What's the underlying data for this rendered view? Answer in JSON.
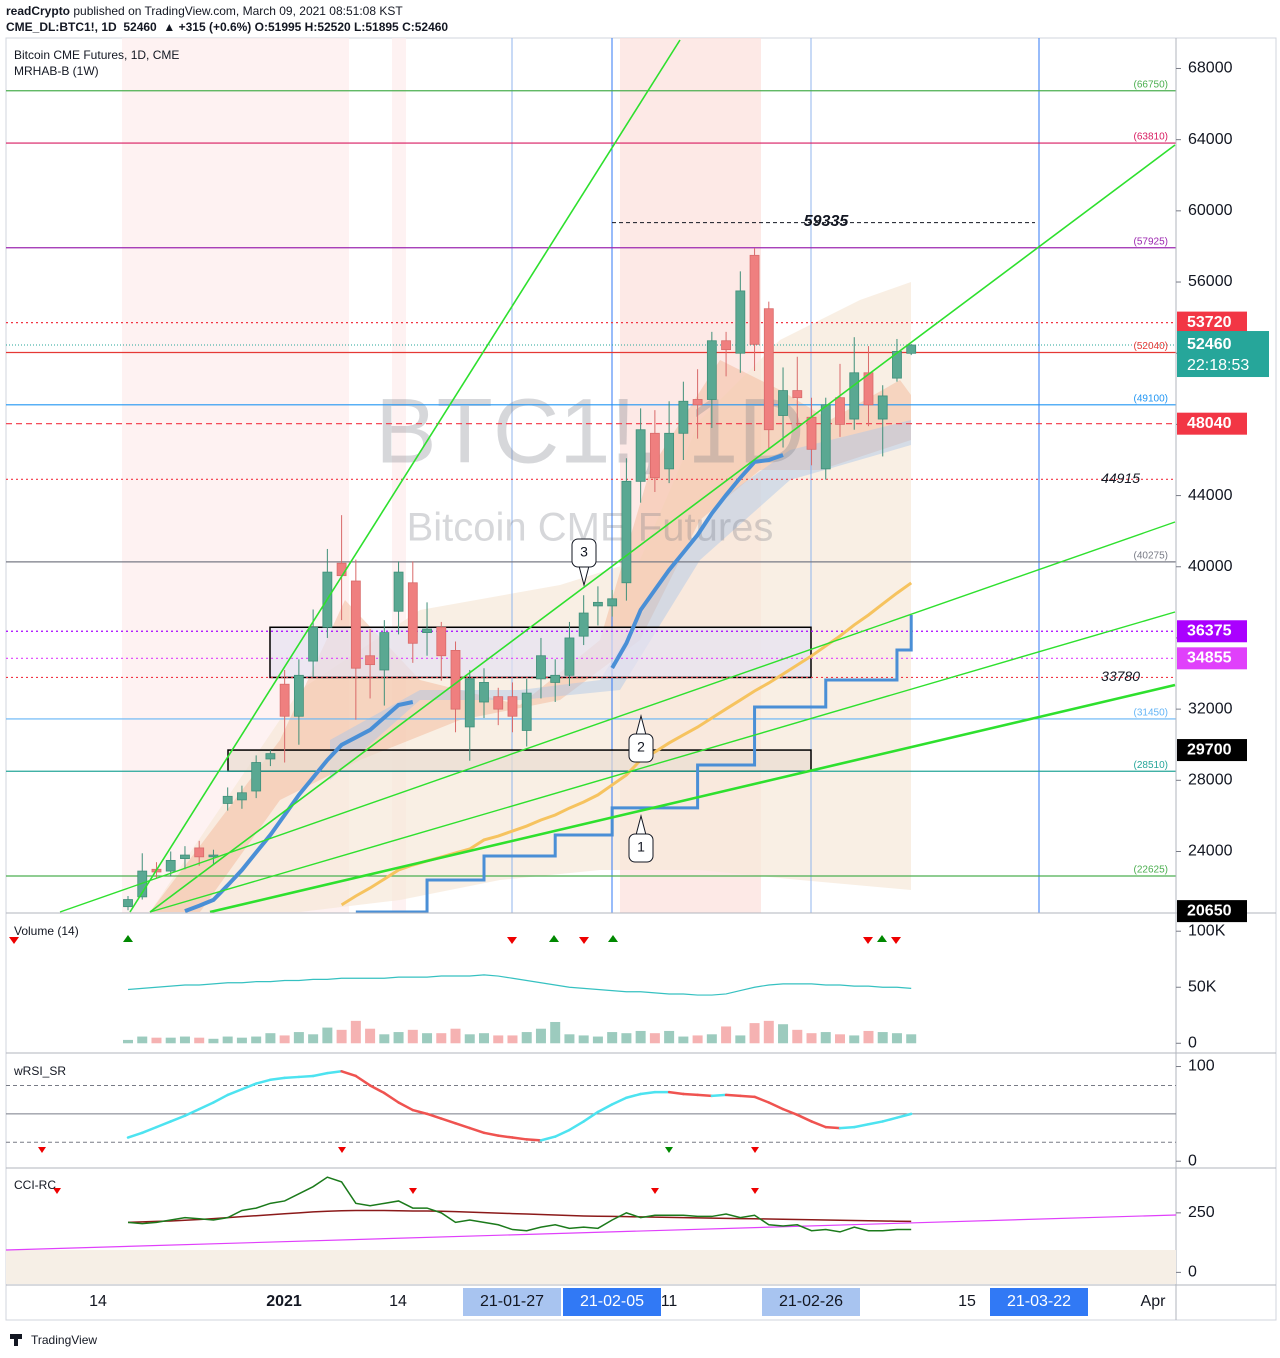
{
  "header": {
    "publisher": "readCrypto",
    "published": "published on TradingView.com, March 09, 2021 08:51:08 KST",
    "symbol_line": "CME_DL:BTC1!, 1D  52460  ▲ +315 (+0.6%) O:51995 H:52520 L:51895 C:52460"
  },
  "footer": {
    "brand": "TradingView"
  },
  "chart_data": [
    {
      "type": "candlestick",
      "title": "Bitcoin CME Futures, 1D, CME",
      "subtitle": "MRHAB-B (1W)",
      "watermark": "BTC1!, 1D",
      "watermark_sub": "Bitcoin CME Futures",
      "up_color": "#5aa892",
      "down_color": "#ef7f7f",
      "open": [
        20900,
        21450,
        23000,
        22900,
        23600,
        24200,
        23700,
        26700,
        26900,
        27400,
        29200,
        33400,
        31600,
        34700,
        36600,
        40200,
        39200,
        35000,
        34200,
        37500,
        39100,
        36300,
        36600,
        35300,
        31000,
        32400,
        32700,
        32700,
        30800,
        33700,
        33500,
        33900,
        36100,
        37800,
        37800,
        39100,
        44800,
        47500,
        45500,
        47500,
        49400,
        49400,
        52700,
        52000,
        57500,
        54500,
        48500,
        49900,
        48400,
        45500,
        49500,
        48300,
        50900,
        48300,
        50600,
        51995
      ],
      "high": [
        21500,
        23900,
        23400,
        24000,
        24300,
        24600,
        24100,
        27600,
        27700,
        29400,
        29700,
        34200,
        34800,
        37600,
        41000,
        42900,
        40400,
        36500,
        37000,
        40300,
        40300,
        38000,
        36900,
        35800,
        34200,
        34300,
        33200,
        33500,
        33700,
        36000,
        34800,
        36900,
        38400,
        38900,
        38700,
        46100,
        48900,
        48800,
        49300,
        50400,
        51100,
        53200,
        53200,
        56600,
        57900,
        54900,
        51200,
        51800,
        49500,
        49500,
        51400,
        52900,
        52400,
        50200,
        52800,
        52520
      ],
      "low": [
        20700,
        21300,
        22500,
        22600,
        23000,
        23200,
        23300,
        26300,
        26400,
        27000,
        28800,
        29000,
        30000,
        33800,
        36000,
        37000,
        31400,
        32600,
        32200,
        36200,
        34600,
        35000,
        33600,
        30700,
        29100,
        31500,
        31100,
        30700,
        29900,
        32600,
        32400,
        33300,
        35600,
        36700,
        37200,
        38100,
        43600,
        44200,
        44700,
        46000,
        47200,
        47800,
        50700,
        50900,
        51000,
        46600,
        46700,
        47900,
        45700,
        44900,
        47300,
        47700,
        47900,
        46200,
        50400,
        51895
      ],
      "close": [
        21300,
        22900,
        22850,
        23500,
        23800,
        23700,
        23800,
        27100,
        27300,
        29000,
        29500,
        31600,
        33900,
        36600,
        39700,
        39500,
        34300,
        34500,
        36300,
        39700,
        35700,
        36500,
        35000,
        32000,
        33700,
        33500,
        32000,
        31600,
        32900,
        35000,
        33900,
        36000,
        37400,
        38000,
        38200,
        44800,
        47700,
        45000,
        47500,
        49300,
        49100,
        52700,
        52200,
        55500,
        52500,
        47700,
        49900,
        49500,
        46600,
        49100,
        48000,
        50900,
        49100,
        49600,
        52100,
        52460
      ],
      "series": [
        {
          "name": "MA",
          "color": "#4a8fd6",
          "values": [
            null,
            null,
            null,
            null,
            20650,
            20950,
            21280,
            22100,
            22960,
            23950,
            24930,
            26050,
            27180,
            28160,
            29140,
            29990,
            30410,
            30830,
            31530,
            32230,
            32400,
            null,
            null,
            null,
            null,
            null,
            null,
            null,
            null,
            null,
            null,
            null,
            null,
            null,
            34310,
            35700,
            37570,
            38700,
            39820,
            40800,
            41790,
            43000,
            44030,
            45000,
            45890,
            46000,
            46280,
            null,
            null,
            null,
            null,
            null,
            null,
            null,
            null,
            null
          ]
        },
        {
          "name": "Slow MA",
          "color": "#f6c35f",
          "values": [
            null,
            null,
            null,
            null,
            null,
            null,
            null,
            null,
            null,
            null,
            null,
            null,
            null,
            null,
            null,
            21000,
            21500,
            21950,
            22450,
            22960,
            23240,
            23470,
            23690,
            23920,
            24140,
            24650,
            24870,
            25150,
            25430,
            25770,
            26050,
            26440,
            26780,
            27180,
            27740,
            28300,
            29140,
            29590,
            30100,
            30550,
            30990,
            31500,
            32010,
            32510,
            33020,
            33470,
            33970,
            34480,
            34990,
            35550,
            36110,
            36730,
            37290,
            37910,
            38520,
            39090
          ]
        },
        {
          "name": "Step",
          "color": "#4a8fd6",
          "values": [
            null,
            null,
            null,
            null,
            null,
            null,
            null,
            null,
            null,
            null,
            null,
            null,
            null,
            null,
            null,
            null,
            20600,
            20600,
            20600,
            20600,
            20600,
            22400,
            22400,
            22400,
            22400,
            23750,
            23750,
            23750,
            23750,
            23750,
            24930,
            24930,
            24930,
            24930,
            26450,
            26450,
            26450,
            26450,
            26450,
            26450,
            28860,
            28860,
            28860,
            28860,
            32120,
            32120,
            32120,
            32120,
            32120,
            33640,
            33640,
            33640,
            33640,
            33640,
            35320,
            37290
          ]
        }
      ],
      "ylim": [
        20600,
        69600
      ],
      "yticks": [
        24000,
        28000,
        32000,
        36000,
        40000,
        44000,
        48000,
        52000,
        56000,
        60000,
        64000,
        68000
      ],
      "levels": [
        {
          "value": 66750,
          "label": "(66750)",
          "color": "#4caf50",
          "style": "solid",
          "kind": "bracket"
        },
        {
          "value": 63810,
          "label": "(63810)",
          "color": "#d81b60",
          "style": "solid",
          "kind": "bracket"
        },
        {
          "value": 57925,
          "label": "(57925)",
          "color": "#9c27b0",
          "style": "solid",
          "kind": "bracket"
        },
        {
          "value": 53720,
          "color": "#f23645",
          "style": "dotted",
          "kind": "tag"
        },
        {
          "value": 52040,
          "label": "(52040)",
          "color": "#e53935",
          "style": "solid",
          "kind": "bracket"
        },
        {
          "value": 49100,
          "label": "(49100)",
          "color": "#2196f3",
          "style": "solid",
          "kind": "bracket"
        },
        {
          "value": 48040,
          "color": "#f23645",
          "style": "dashed",
          "kind": "tag"
        },
        {
          "value": 44915,
          "color": "#f23645",
          "style": "dotted",
          "kind": "italic"
        },
        {
          "value": 40275,
          "label": "(40275)",
          "color": "#787b86",
          "style": "solid",
          "kind": "bracket"
        },
        {
          "value": 36375,
          "color": "#aa00ff",
          "style": "dotted",
          "kind": "tag"
        },
        {
          "value": 34855,
          "color": "#e040fb",
          "style": "dotted",
          "kind": "tag"
        },
        {
          "value": 33780,
          "color": "#f23645",
          "style": "dotted",
          "kind": "italic"
        },
        {
          "value": 31450,
          "label": "(31450)",
          "color": "#64b5f6",
          "style": "solid",
          "kind": "bracket"
        },
        {
          "value": 29700,
          "color": "#000000",
          "style": "none",
          "kind": "tag"
        },
        {
          "value": 28510,
          "label": "(28510)",
          "color": "#26a69a",
          "style": "solid",
          "kind": "bracket"
        },
        {
          "value": 22625,
          "label": "(22625)",
          "color": "#4caf50",
          "style": "solid",
          "kind": "bracket"
        },
        {
          "value": 20650,
          "color": "#000000",
          "style": "none",
          "kind": "tag"
        }
      ],
      "last": {
        "value": 52460,
        "countdown": "22:18:53",
        "color": "#26a69a"
      },
      "zones": [
        {
          "top": 36600,
          "bottom": 33780,
          "fill": "#e6e2f2"
        },
        {
          "top": 29700,
          "bottom": 28510,
          "fill": "#e9ddd2"
        }
      ],
      "annotations": [
        {
          "value": 59335
        }
      ],
      "callouts": [
        "3",
        "2",
        "1"
      ],
      "xtick_labels": [
        "14",
        "2021",
        "14",
        "21-01-27",
        "21-02-05",
        "11",
        "21-02-26",
        "15",
        "21-03-22",
        "Apr"
      ]
    },
    {
      "type": "bar",
      "title": "Volume (14)",
      "values": [
        3000,
        6000,
        5000,
        5000,
        6000,
        5000,
        4000,
        6000,
        5000,
        6000,
        9000,
        7000,
        10000,
        8000,
        14000,
        12000,
        20000,
        13000,
        8000,
        10000,
        12000,
        9000,
        9000,
        13000,
        8000,
        9000,
        7000,
        7000,
        10000,
        13000,
        19000,
        8000,
        7000,
        6000,
        10000,
        9000,
        11000,
        9000,
        11000,
        6000,
        7000,
        8000,
        15000,
        7000,
        18000,
        20000,
        17000,
        12000,
        9000,
        10000,
        8000,
        7000,
        11000,
        10000,
        9000,
        8000
      ],
      "series": [
        {
          "name": "MA",
          "color": "#36c1c1",
          "values": [
            48000,
            49000,
            50000,
            51000,
            52000,
            52000,
            53000,
            54000,
            54000,
            55000,
            55000,
            56000,
            56000,
            57000,
            57000,
            58000,
            58000,
            58000,
            58000,
            59000,
            59000,
            59000,
            60000,
            60000,
            60000,
            61000,
            60000,
            58000,
            56000,
            54000,
            52000,
            50000,
            49000,
            48000,
            47000,
            46000,
            46000,
            45000,
            44000,
            44000,
            43000,
            43000,
            44000,
            47000,
            50000,
            52000,
            53000,
            53000,
            53000,
            52000,
            52000,
            51000,
            51000,
            50000,
            50000,
            49000
          ]
        }
      ],
      "ylim": [
        -6000,
        110000
      ],
      "yticks": [
        {
          "value": 100000,
          "label": "100K"
        },
        {
          "value": 50000,
          "label": "50K"
        },
        0
      ]
    },
    {
      "type": "line",
      "title": "wRSI_SR",
      "values": [
        25,
        30,
        36,
        42,
        48,
        55,
        62,
        70,
        76,
        82,
        86,
        88,
        89,
        90,
        93,
        95,
        90,
        80,
        72,
        62,
        54,
        50,
        45,
        40,
        35,
        30,
        27,
        25,
        23,
        22,
        26,
        33,
        42,
        52,
        60,
        67,
        71,
        73,
        73,
        71,
        70,
        69,
        70,
        69,
        68,
        62,
        55,
        49,
        42,
        36,
        35,
        36,
        39,
        42,
        46,
        50
      ],
      "up_color": "#4de3f0",
      "down_color": "#ef5350",
      "ylim": [
        -4,
        109
      ],
      "yticks": [
        0,
        100
      ],
      "guides": [
        20,
        50,
        80
      ]
    },
    {
      "type": "line",
      "title": "CCI-RC",
      "values": [
        210,
        205,
        210,
        220,
        230,
        225,
        220,
        230,
        260,
        270,
        290,
        300,
        330,
        360,
        400,
        380,
        290,
        280,
        290,
        300,
        270,
        270,
        250,
        210,
        220,
        210,
        200,
        180,
        175,
        190,
        200,
        185,
        190,
        185,
        220,
        250,
        230,
        240,
        240,
        240,
        235,
        235,
        245,
        230,
        240,
        200,
        195,
        200,
        175,
        180,
        170,
        190,
        175,
        175,
        180,
        180
      ],
      "series": [
        {
          "name": "Signal",
          "color": "#8b1a1a",
          "values": [
            210,
            212,
            214,
            216,
            219,
            222,
            226,
            230,
            234,
            238,
            242,
            246,
            250,
            254,
            257,
            259,
            260,
            260,
            260,
            259,
            258,
            258,
            257,
            255,
            253,
            251,
            249,
            247,
            245,
            243,
            241,
            239,
            237,
            236,
            235,
            234,
            233,
            232,
            231,
            230,
            229,
            228,
            227,
            226,
            225,
            224,
            223,
            222,
            221,
            220,
            219,
            218,
            217,
            216,
            215,
            214
          ]
        }
      ],
      "color": "#1b7a1b",
      "ylim": [
        -53,
        430
      ],
      "yticks": [
        0,
        250
      ]
    }
  ]
}
